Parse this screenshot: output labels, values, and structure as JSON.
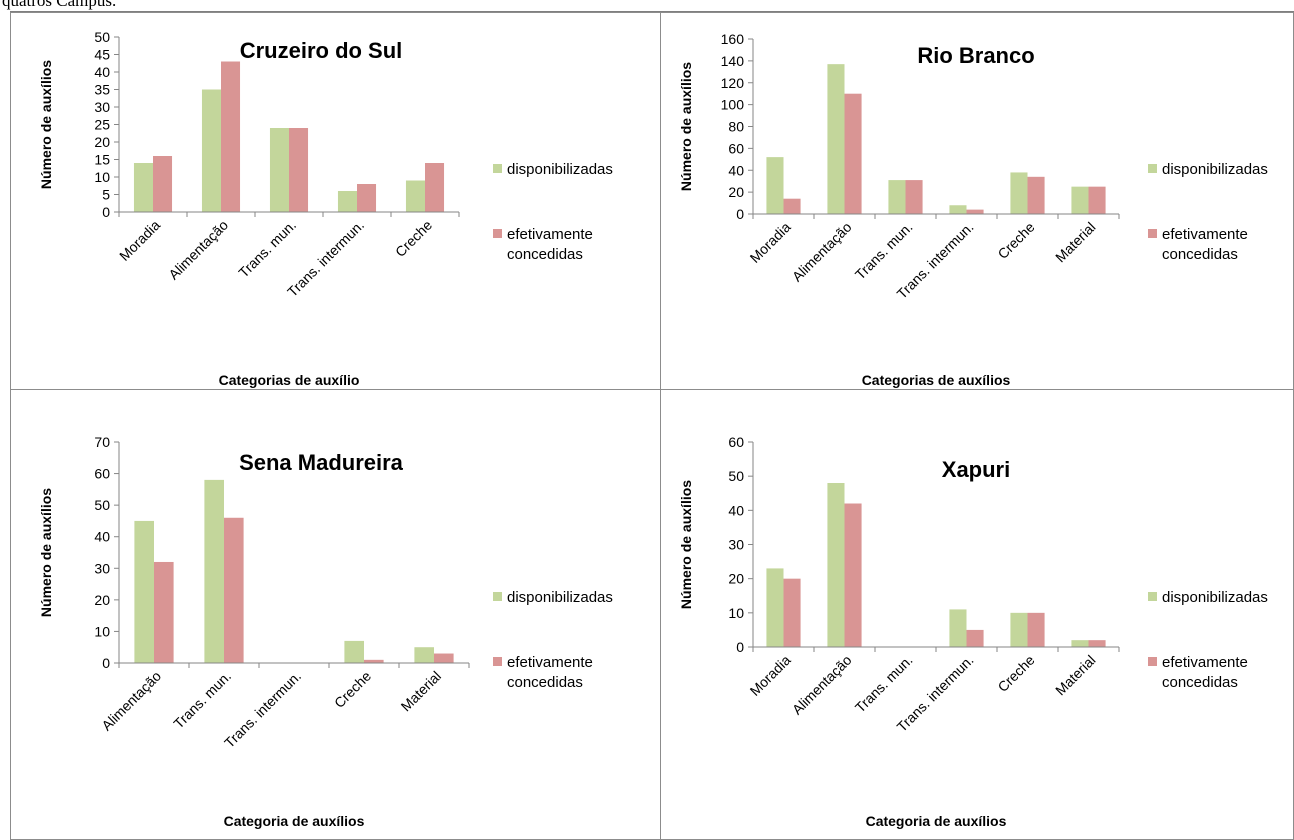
{
  "caption_fragment": "quatros Campus.",
  "colors": {
    "disponibilizadas": "#c3d69b",
    "efetivamente": "#d99594",
    "axis": "#868686"
  },
  "chart_data": [
    {
      "type": "bar",
      "title": "Cruzeiro do Sul",
      "ylabel": "Número de auxílios",
      "xlabel": "Categorias de auxílio",
      "categories": [
        "Moradia",
        "Alimentação",
        "Trans. mun.",
        "Trans. intermun.",
        "Creche"
      ],
      "ylim": [
        0,
        50
      ],
      "yticks": [
        0,
        5,
        10,
        15,
        20,
        25,
        30,
        35,
        40,
        45,
        50
      ],
      "series": [
        {
          "name": "disponibilizadas",
          "values": [
            14,
            35,
            24,
            6,
            9
          ]
        },
        {
          "name": "efetivamente concedidas",
          "values": [
            16,
            43,
            24,
            8,
            14
          ]
        }
      ],
      "legend": "right"
    },
    {
      "type": "bar",
      "title": "Rio Branco",
      "ylabel": "Número de auxílios",
      "xlabel": "Categorias de auxílios",
      "categories": [
        "Moradia",
        "Alimentação",
        "Trans. mun.",
        "Trans. intermun.",
        "Creche",
        "Material"
      ],
      "ylim": [
        0,
        160
      ],
      "yticks": [
        0,
        20,
        40,
        60,
        80,
        100,
        120,
        140,
        160
      ],
      "series": [
        {
          "name": "disponibilizadas",
          "values": [
            52,
            137,
            31,
            8,
            38,
            25
          ]
        },
        {
          "name": "efetivamente concedidas",
          "values": [
            14,
            110,
            31,
            4,
            34,
            25
          ]
        }
      ],
      "legend": "right"
    },
    {
      "type": "bar",
      "title": "Sena Madureira",
      "ylabel": "Número de auxílios",
      "xlabel": "Categoria de auxílios",
      "categories": [
        "Alimentação",
        "Trans. mun.",
        "Trans. intermun.",
        "Creche",
        "Material"
      ],
      "ylim": [
        0,
        70
      ],
      "yticks": [
        0,
        10,
        20,
        30,
        40,
        50,
        60,
        70
      ],
      "series": [
        {
          "name": "disponibilizadas",
          "values": [
            45,
            58,
            0,
            7,
            5
          ]
        },
        {
          "name": "efetivamente concedidas",
          "values": [
            32,
            46,
            0,
            1,
            3
          ]
        }
      ],
      "legend": "right"
    },
    {
      "type": "bar",
      "title": "Xapuri",
      "ylabel": "Número de auxílios",
      "xlabel": "Categoria de auxílios",
      "categories": [
        "Moradia",
        "Alimentação",
        "Trans. mun.",
        "Trans. intermun.",
        "Creche",
        "Material"
      ],
      "ylim": [
        0,
        60
      ],
      "yticks": [
        0,
        10,
        20,
        30,
        40,
        50,
        60
      ],
      "series": [
        {
          "name": "disponibilizadas",
          "values": [
            23,
            48,
            0,
            11,
            10,
            2
          ]
        },
        {
          "name": "efetivamente concedidas",
          "values": [
            20,
            42,
            0,
            5,
            10,
            2
          ]
        }
      ],
      "legend": "right"
    }
  ]
}
